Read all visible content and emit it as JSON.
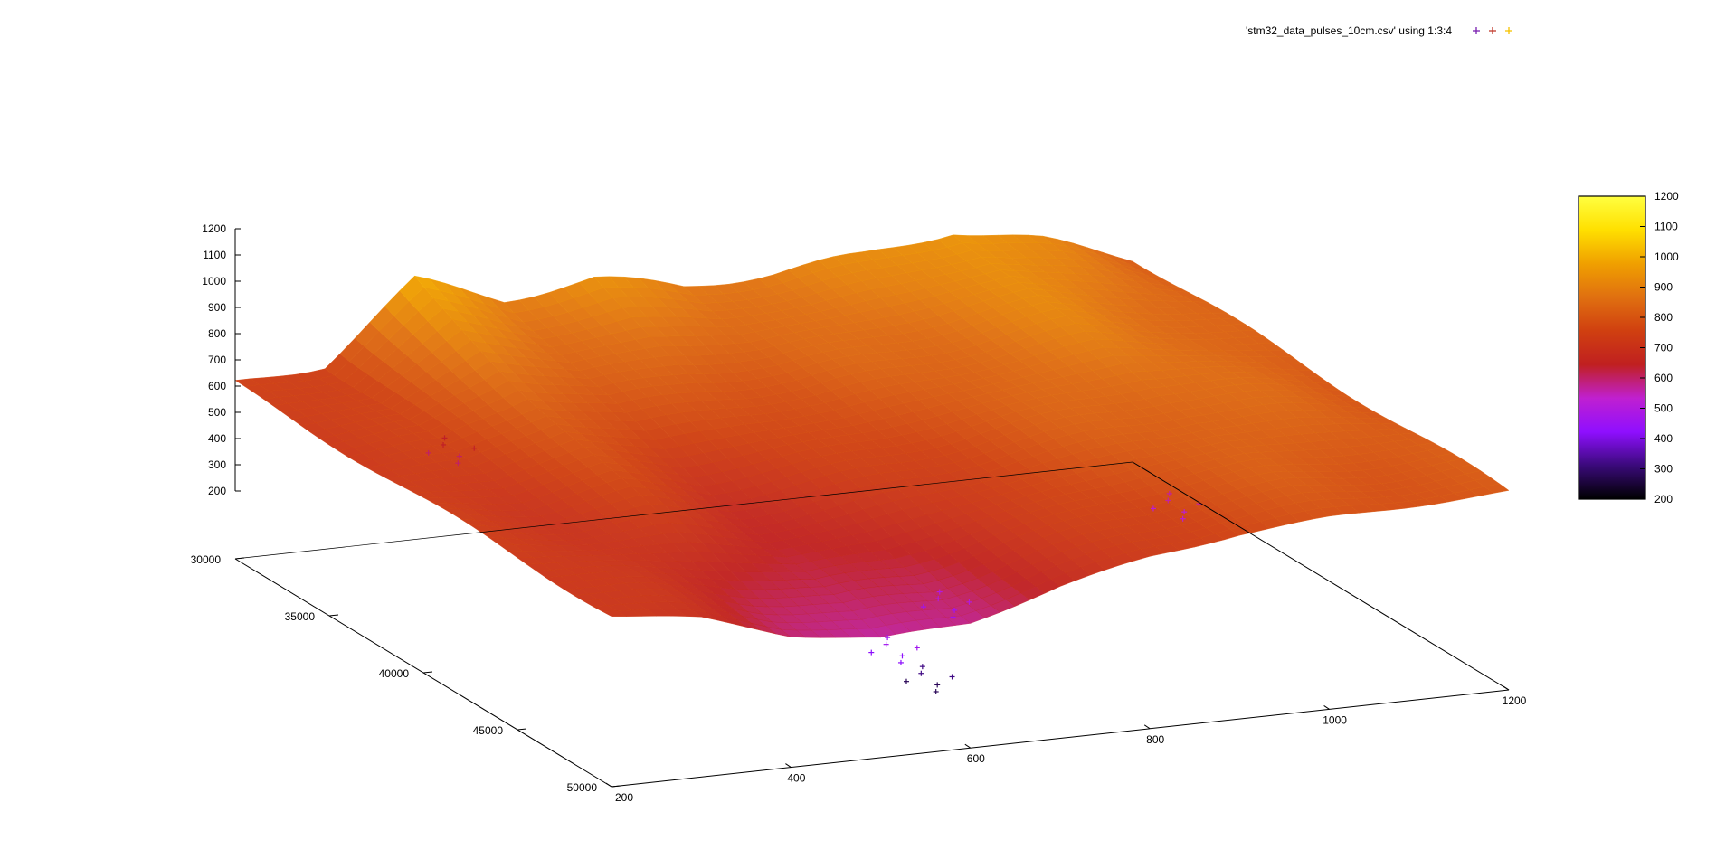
{
  "chart_data": {
    "type": "scatter",
    "title": "",
    "legend": {
      "label": "'stm32_data_pulses_10cm.csv' using 1:3:4",
      "placement": "top-right",
      "marker_colors": [
        "#7a1fb0",
        "#c0392b",
        "#f6c200"
      ]
    },
    "x_axis": {
      "range": [
        200,
        1200
      ],
      "ticks": [
        "200",
        "400",
        "600",
        "800",
        "1000",
        "1200"
      ]
    },
    "y_axis": {
      "range": [
        30000,
        50000
      ],
      "ticks": [
        "30000",
        "35000",
        "40000",
        "45000",
        "50000"
      ]
    },
    "z_axis": {
      "range": [
        200,
        1200
      ],
      "ticks": [
        "200",
        "300",
        "400",
        "500",
        "600",
        "700",
        "800",
        "900",
        "1000",
        "1100",
        "1200"
      ]
    },
    "colorbar": {
      "range": [
        200,
        1200
      ],
      "ticks": [
        "200",
        "300",
        "400",
        "500",
        "600",
        "700",
        "800",
        "900",
        "1000",
        "1100",
        "1200"
      ],
      "palette": [
        "#000000",
        "#3a0a7a",
        "#8f0fff",
        "#c020d0",
        "#c02020",
        "#d04010",
        "#e07010",
        "#f0a000",
        "#ffe000",
        "#ffff40"
      ]
    },
    "surface_profile": {
      "x_values": [
        200,
        300,
        400,
        500,
        600,
        700,
        800,
        900,
        1000,
        1100,
        1200
      ],
      "z_far_row": [
        730,
        760,
        985,
        900,
        930,
        880,
        890,
        915,
        960,
        900,
        820
      ],
      "z_near_row": [
        720,
        680,
        600,
        560,
        580,
        660,
        720,
        760,
        780,
        790,
        800
      ],
      "dips": [
        {
          "x": 560,
          "y": 48000,
          "z": 420
        },
        {
          "x": 620,
          "y": 47000,
          "z": 280
        },
        {
          "x": 660,
          "y": 46000,
          "z": 460
        },
        {
          "x": 1000,
          "y": 42000,
          "z": 520
        },
        {
          "x": 360,
          "y": 34000,
          "z": 600
        }
      ]
    }
  }
}
